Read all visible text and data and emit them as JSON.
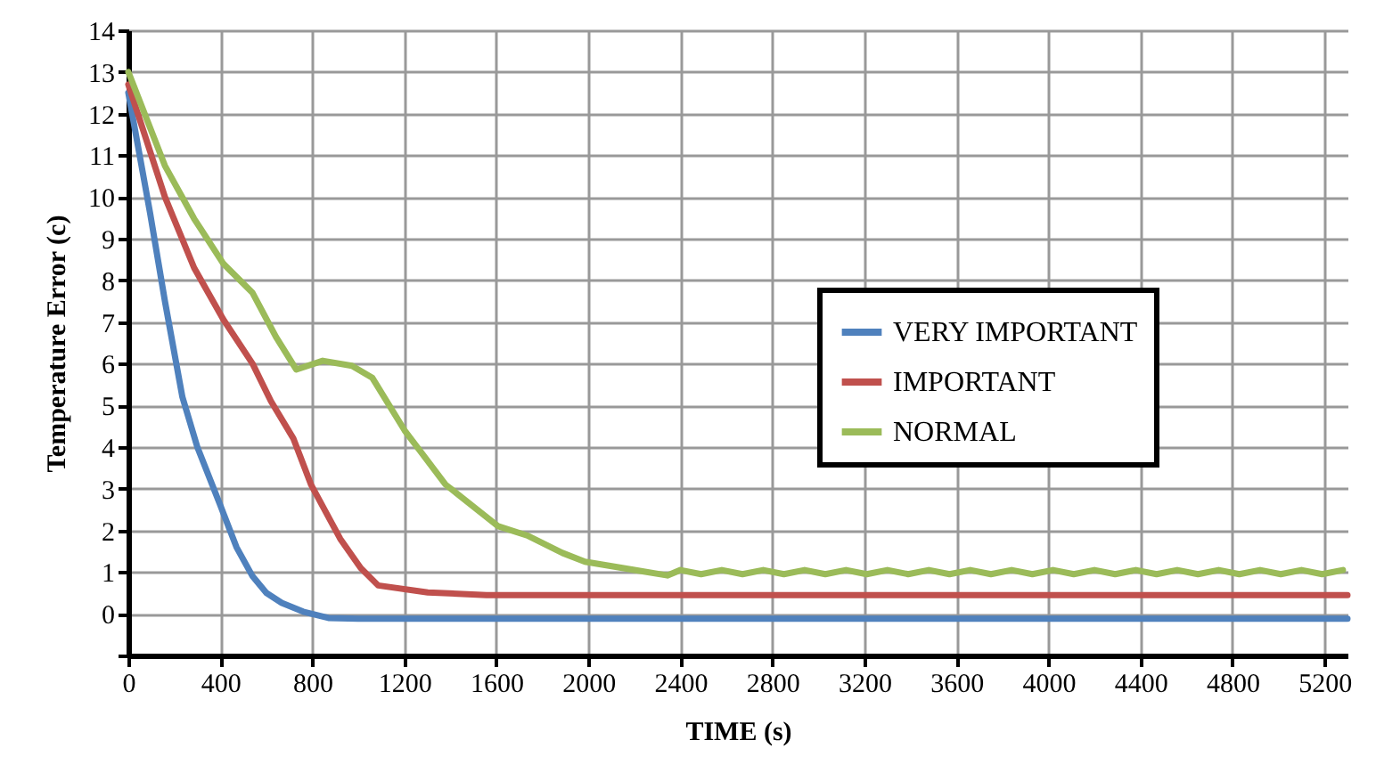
{
  "chart_data": {
    "type": "line",
    "xlabel": "TIME (s)",
    "ylabel": "Temperature Error (c)",
    "xlim": [
      0,
      5300
    ],
    "xticks": [
      0,
      400,
      800,
      1200,
      1600,
      2000,
      2400,
      2800,
      3200,
      3600,
      4000,
      4400,
      4800,
      5200
    ],
    "ylim": [
      -1,
      14
    ],
    "yticks": [
      {
        "value": -1,
        "label": null
      },
      0,
      1,
      2,
      3,
      4,
      5,
      6,
      7,
      8,
      9,
      10,
      11,
      12,
      13,
      14
    ],
    "grid": true,
    "legend": "right",
    "marker": "none",
    "line_style": "solid",
    "series": [
      {
        "name": "VERY IMPORTANT",
        "color": "#4f81bd",
        "x": [
          0,
          95,
          159,
          235,
          300,
          400,
          470,
          540,
          600,
          667,
          760,
          870,
          1000,
          1500,
          2000,
          3000,
          4000,
          5300
        ],
        "values": [
          12.5,
          9.6,
          7.5,
          5.2,
          4.0,
          2.6,
          1.6,
          0.9,
          0.5,
          0.26,
          0.05,
          -0.1,
          -0.12,
          -0.12,
          -0.12,
          -0.12,
          -0.12,
          -0.12
        ]
      },
      {
        "name": "IMPORTANT",
        "color": "#c0504d",
        "x": [
          0,
          159,
          286,
          413,
          540,
          620,
          718,
          794,
          921,
          1010,
          1086,
          1302,
          1557,
          2000,
          3000,
          4000,
          5300
        ],
        "values": [
          12.7,
          10.0,
          8.3,
          7.06,
          6.0,
          5.1,
          4.2,
          3.1,
          1.8,
          1.1,
          0.68,
          0.51,
          0.45,
          0.45,
          0.45,
          0.45,
          0.45
        ]
      },
      {
        "name": "NORMAL",
        "color": "#9bbb59",
        "x": [
          0,
          159,
          286,
          413,
          540,
          642,
          730,
          845,
          972,
          1061,
          1201,
          1379,
          1608,
          1733,
          1887,
          1985,
          2200,
          2343,
          2400,
          2490,
          2580,
          2670,
          2760,
          2850,
          2940,
          3030,
          3120,
          3210,
          3300,
          3390,
          3480,
          3570,
          3660,
          3750,
          3840,
          3930,
          4020,
          4110,
          4200,
          4290,
          4380,
          4470,
          4560,
          4650,
          4740,
          4830,
          4920,
          5010,
          5100,
          5190,
          5280
        ],
        "values": [
          13.0,
          10.75,
          9.48,
          8.4,
          7.7,
          6.64,
          5.86,
          6.07,
          5.95,
          5.66,
          4.4,
          3.1,
          2.1,
          1.88,
          1.46,
          1.25,
          1.05,
          0.92,
          1.05,
          0.95,
          1.05,
          0.95,
          1.05,
          0.95,
          1.05,
          0.95,
          1.05,
          0.95,
          1.05,
          0.95,
          1.05,
          0.95,
          1.05,
          0.95,
          1.05,
          0.95,
          1.05,
          0.95,
          1.05,
          0.95,
          1.05,
          0.95,
          1.05,
          0.95,
          1.05,
          0.95,
          1.05,
          0.95,
          1.05,
          0.95,
          1.05
        ]
      }
    ]
  }
}
